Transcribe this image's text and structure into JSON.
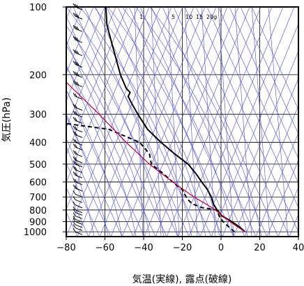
{
  "chart_data": {
    "type": "line",
    "title": "",
    "xlabel": "気温(実線), 露点(破線)",
    "ylabel": "気圧(hPa)",
    "xlim": [
      -80,
      40
    ],
    "ylim_hpa": [
      1050,
      100
    ],
    "y_scale": "log",
    "x_ticks": [
      "−80",
      "−60",
      "−40",
      "−20",
      "0",
      "20",
      "40"
    ],
    "x_tick_values": [
      -80,
      -60,
      -40,
      -20,
      0,
      20,
      40
    ],
    "y_ticks": [
      "100",
      "200",
      "300",
      "400",
      "500",
      "600",
      "700",
      "800",
      "900",
      "1000"
    ],
    "y_tick_values": [
      100,
      200,
      300,
      400,
      500,
      600,
      700,
      800,
      900,
      1000
    ],
    "grid": true,
    "mixing_ratio_labels": [
      {
        "text": "1",
        "value": 1
      },
      {
        "text": "5",
        "value": 5
      },
      {
        "text": "10",
        "value": 10
      },
      {
        "text": "15",
        "value": 15
      },
      {
        "text": "20g",
        "value": 20
      }
    ],
    "series": [
      {
        "style": "solid",
        "color": "#000000",
        "p": [
          1000,
          950,
          900,
          850,
          800,
          750,
          700,
          650,
          600,
          550,
          500,
          450,
          400,
          350,
          300,
          270,
          250,
          240,
          230,
          200,
          150,
          120,
          100
        ],
        "t": [
          12.5,
          9.5,
          5.5,
          0.5,
          -2,
          -4,
          -5,
          -7,
          -10,
          -13,
          -17,
          -24,
          -31,
          -38,
          -43,
          -46,
          -48,
          -47,
          -49,
          -52,
          -56,
          -59,
          -59.5
        ]
      },
      {
        "style": "dashed",
        "color": "#000000",
        "p": [
          1000,
          950,
          900,
          850,
          800,
          780,
          750,
          720,
          700,
          650,
          600,
          550,
          500,
          450,
          400,
          350,
          330
        ],
        "t": [
          7,
          4,
          1,
          -1,
          -2,
          -10,
          -15,
          -17,
          -18,
          -20,
          -25,
          -30,
          -36,
          -37,
          -42,
          -58,
          -80
        ]
      },
      {
        "style": "solid",
        "color": "#c0003a",
        "p": [
          1000,
          950,
          900,
          850,
          800,
          750,
          700,
          600,
          500,
          400,
          300,
          200
        ],
        "t": [
          12.5,
          8.5,
          4.5,
          1,
          -3,
          -8,
          -14,
          -25,
          -37,
          -49,
          -63,
          -84
        ]
      }
    ],
    "wind_profile": {
      "p": [
        100,
        110,
        125,
        140,
        160,
        180,
        200,
        220,
        250,
        280,
        300,
        320,
        350,
        370,
        400,
        420,
        450,
        480,
        500,
        530,
        560,
        600,
        640,
        680,
        720,
        760,
        800,
        820,
        850,
        880,
        900,
        930,
        960,
        1000
      ],
      "barbs": [
        3,
        3,
        3,
        3,
        3,
        3,
        3,
        3,
        2,
        2,
        2,
        2,
        2,
        2,
        2,
        2,
        2,
        2,
        2,
        2,
        2,
        2,
        2,
        1,
        1,
        1,
        1,
        1,
        1,
        1,
        1,
        1,
        1,
        1
      ]
    },
    "colors": {
      "isobar": "#000000",
      "isotherm": "#000000",
      "skew_lines": "#4848e8",
      "temperature": "#000000",
      "dewpoint": "#000000",
      "parcel": "#c0003a"
    }
  }
}
